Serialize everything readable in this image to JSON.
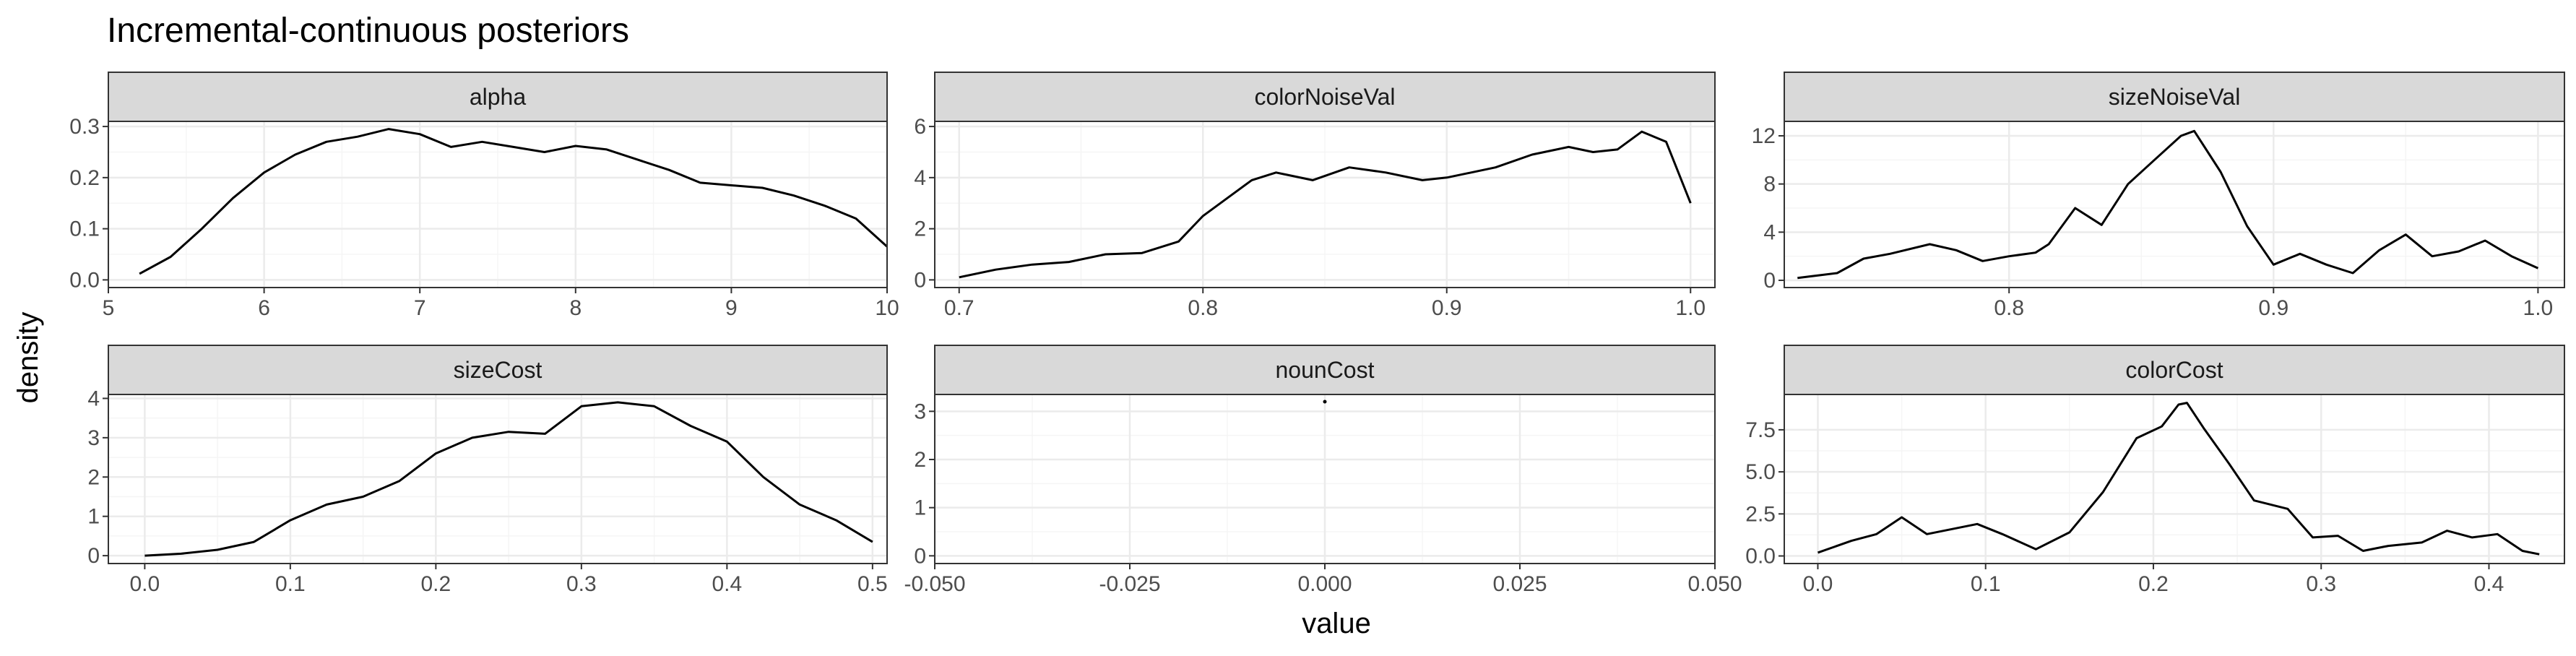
{
  "chart_data": {
    "type": "line",
    "title": "Incremental-continuous posteriors",
    "xlabel": "value",
    "ylabel": "density",
    "grid": true,
    "colors": {
      "line": "#000000",
      "strip_fill": "#d9d9d9",
      "strip_border": "#333333",
      "grid_major": "#ebebeb",
      "grid_minor": "#f5f5f5",
      "panel_border": "#333333"
    },
    "panels": [
      {
        "name": "alpha",
        "xlim": [
          5.0,
          10.0
        ],
        "ylim": [
          -0.015,
          0.31
        ],
        "xticks": [
          5,
          6,
          7,
          8,
          9,
          10
        ],
        "xtick_labels": [
          "5",
          "6",
          "7",
          "8",
          "9",
          "10"
        ],
        "yticks": [
          0.0,
          0.1,
          0.2,
          0.3
        ],
        "ytick_labels": [
          "0.0",
          "0.1",
          "0.2",
          "0.3"
        ],
        "x": [
          5.2,
          5.4,
          5.6,
          5.8,
          6.0,
          6.2,
          6.4,
          6.6,
          6.8,
          7.0,
          7.2,
          7.4,
          7.6,
          7.8,
          8.0,
          8.2,
          8.4,
          8.6,
          8.8,
          9.0,
          9.2,
          9.4,
          9.6,
          9.8,
          10.0
        ],
        "y": [
          0.012,
          0.045,
          0.1,
          0.16,
          0.21,
          0.245,
          0.27,
          0.28,
          0.295,
          0.285,
          0.26,
          0.27,
          0.26,
          0.25,
          0.262,
          0.255,
          0.235,
          0.215,
          0.19,
          0.185,
          0.18,
          0.165,
          0.145,
          0.12,
          0.065
        ]
      },
      {
        "name": "colorNoiseVal",
        "xlim": [
          0.69,
          1.01
        ],
        "ylim": [
          -0.3,
          6.2
        ],
        "xticks": [
          0.7,
          0.8,
          0.9,
          1.0
        ],
        "xtick_labels": [
          "0.7",
          "0.8",
          "0.9",
          "1.0"
        ],
        "yticks": [
          0,
          2,
          4,
          6
        ],
        "ytick_labels": [
          "0",
          "2",
          "4",
          "6"
        ],
        "x": [
          0.7,
          0.715,
          0.73,
          0.745,
          0.76,
          0.775,
          0.79,
          0.8,
          0.81,
          0.82,
          0.83,
          0.845,
          0.86,
          0.875,
          0.89,
          0.9,
          0.91,
          0.92,
          0.935,
          0.95,
          0.96,
          0.97,
          0.98,
          0.99,
          1.0
        ],
        "y": [
          0.1,
          0.4,
          0.6,
          0.7,
          1.0,
          1.05,
          1.5,
          2.5,
          3.2,
          3.9,
          4.2,
          3.9,
          4.4,
          4.2,
          3.9,
          4.0,
          4.2,
          4.4,
          4.9,
          5.2,
          5.0,
          5.1,
          5.8,
          5.4,
          3.0
        ]
      },
      {
        "name": "sizeNoiseVal",
        "xlim": [
          0.715,
          1.01
        ],
        "ylim": [
          -0.6,
          13.2
        ],
        "xticks": [
          0.8,
          0.9,
          1.0
        ],
        "xtick_labels": [
          "0.8",
          "0.9",
          "1.0"
        ],
        "yticks": [
          0,
          4,
          8,
          12
        ],
        "ytick_labels": [
          "0",
          "4",
          "8",
          "12"
        ],
        "x": [
          0.72,
          0.735,
          0.745,
          0.755,
          0.77,
          0.78,
          0.79,
          0.8,
          0.81,
          0.815,
          0.825,
          0.835,
          0.845,
          0.855,
          0.865,
          0.87,
          0.88,
          0.89,
          0.9,
          0.91,
          0.92,
          0.93,
          0.94,
          0.95,
          0.96,
          0.97,
          0.98,
          0.99,
          1.0
        ],
        "y": [
          0.2,
          0.6,
          1.8,
          2.2,
          3.0,
          2.5,
          1.6,
          2.0,
          2.3,
          3.0,
          6.0,
          4.6,
          8.0,
          10.0,
          12.0,
          12.4,
          9.0,
          4.5,
          1.3,
          2.2,
          1.3,
          0.6,
          2.5,
          3.8,
          2.0,
          2.4,
          3.3,
          2.0,
          1.0
        ]
      },
      {
        "name": "sizeCost",
        "xlim": [
          -0.025,
          0.51
        ],
        "ylim": [
          -0.2,
          4.1
        ],
        "xticks": [
          0.0,
          0.1,
          0.2,
          0.3,
          0.4,
          0.5
        ],
        "xtick_labels": [
          "0.0",
          "0.1",
          "0.2",
          "0.3",
          "0.4",
          "0.5"
        ],
        "yticks": [
          0,
          1,
          2,
          3,
          4
        ],
        "ytick_labels": [
          "0",
          "1",
          "2",
          "3",
          "4"
        ],
        "x": [
          0.0,
          0.025,
          0.05,
          0.075,
          0.1,
          0.125,
          0.15,
          0.175,
          0.2,
          0.225,
          0.25,
          0.275,
          0.3,
          0.325,
          0.35,
          0.375,
          0.4,
          0.425,
          0.45,
          0.475,
          0.5
        ],
        "y": [
          0.0,
          0.05,
          0.15,
          0.35,
          0.9,
          1.3,
          1.5,
          1.9,
          2.6,
          3.0,
          3.15,
          3.1,
          3.8,
          3.9,
          3.8,
          3.3,
          2.9,
          2.0,
          1.3,
          0.9,
          0.35
        ]
      },
      {
        "name": "nounCost",
        "xlim": [
          -0.05,
          0.05
        ],
        "ylim": [
          -0.16,
          3.35
        ],
        "xticks": [
          -0.05,
          -0.025,
          0.0,
          0.025,
          0.05
        ],
        "xtick_labels": [
          "-0.050",
          "-0.025",
          "0.000",
          "0.025",
          "0.050"
        ],
        "yticks": [
          0,
          1,
          2,
          3
        ],
        "ytick_labels": [
          "0",
          "1",
          "2",
          "3"
        ],
        "x": [
          0.0
        ],
        "y": [
          3.2
        ]
      },
      {
        "name": "colorCost",
        "xlim": [
          -0.02,
          0.445
        ],
        "ylim": [
          -0.45,
          9.6
        ],
        "xticks": [
          0.0,
          0.1,
          0.2,
          0.3,
          0.4
        ],
        "xtick_labels": [
          "0.0",
          "0.1",
          "0.2",
          "0.3",
          "0.4"
        ],
        "yticks": [
          0.0,
          2.5,
          5.0,
          7.5
        ],
        "ytick_labels": [
          "0.0",
          "2.5",
          "5.0",
          "7.5"
        ],
        "x": [
          0.0,
          0.02,
          0.035,
          0.05,
          0.065,
          0.08,
          0.095,
          0.11,
          0.13,
          0.15,
          0.17,
          0.19,
          0.205,
          0.215,
          0.22,
          0.23,
          0.245,
          0.26,
          0.28,
          0.295,
          0.31,
          0.325,
          0.34,
          0.36,
          0.375,
          0.39,
          0.405,
          0.42,
          0.43
        ],
        "y": [
          0.2,
          0.9,
          1.3,
          2.3,
          1.3,
          1.6,
          1.9,
          1.3,
          0.4,
          1.4,
          3.8,
          7.0,
          7.7,
          9.0,
          9.1,
          7.6,
          5.5,
          3.3,
          2.8,
          1.1,
          1.2,
          0.3,
          0.6,
          0.8,
          1.5,
          1.1,
          1.3,
          0.3,
          0.1
        ]
      }
    ]
  }
}
